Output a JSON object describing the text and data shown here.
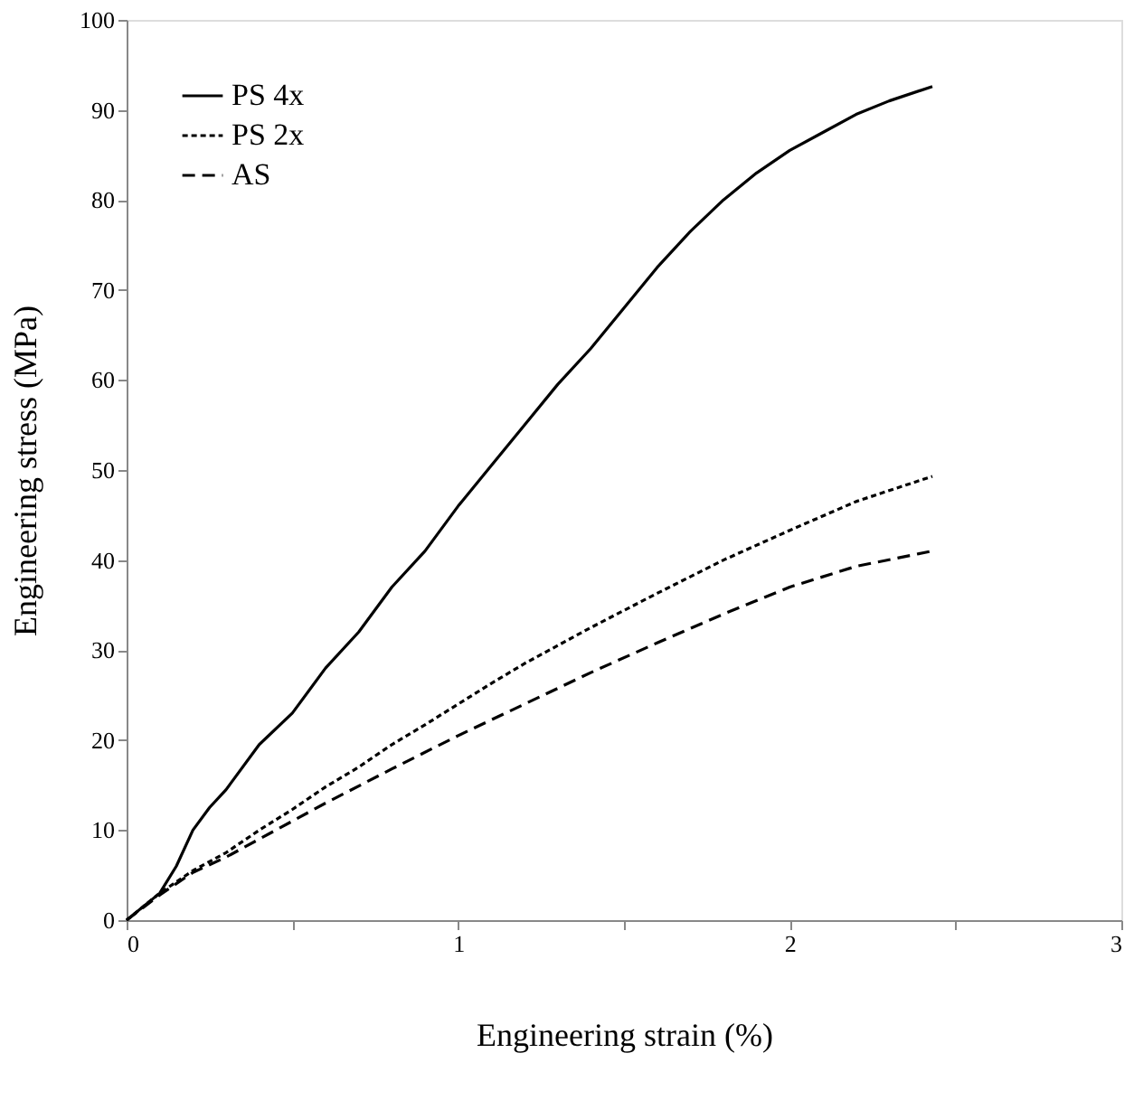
{
  "chart_data": {
    "type": "line",
    "xlabel": "Engineering strain (%)",
    "ylabel": "Engineering stress (MPa)",
    "xlim": [
      0,
      3
    ],
    "xticks": [
      0,
      {
        "value": 0.5,
        "label": null
      },
      1,
      {
        "value": 1.5,
        "label": null
      },
      2,
      {
        "value": 2.5,
        "label": null
      },
      3
    ],
    "ylim": [
      0,
      100
    ],
    "yticks": [
      0,
      10,
      20,
      30,
      40,
      50,
      60,
      70,
      80,
      90,
      100
    ],
    "grid": false,
    "legend": "top left",
    "marker": "none",
    "series": [
      {
        "name": "PS 4x",
        "color": "#000000",
        "line_style": "solid",
        "x": [
          0,
          0.1,
          0.15,
          0.2,
          0.25,
          0.3,
          0.4,
          0.5,
          0.6,
          0.7,
          0.8,
          0.9,
          1.0,
          1.1,
          1.2,
          1.3,
          1.4,
          1.5,
          1.6,
          1.7,
          1.8,
          1.9,
          2.0,
          2.1,
          2.2,
          2.3,
          2.43
        ],
        "values": [
          0,
          3,
          6,
          10,
          12.5,
          14.5,
          19.5,
          23,
          28,
          32,
          37,
          41,
          46,
          50.5,
          55,
          59.5,
          63.5,
          68,
          72.5,
          76.5,
          80,
          83,
          85.5,
          87.5,
          89.5,
          91,
          92.6
        ]
      },
      {
        "name": "PS 2x",
        "color": "#000000",
        "line_style": "dotted",
        "x": [
          0,
          0.1,
          0.2,
          0.3,
          0.4,
          0.5,
          0.6,
          0.7,
          0.8,
          0.9,
          1.0,
          1.1,
          1.2,
          1.4,
          1.6,
          1.8,
          2.0,
          2.2,
          2.43
        ],
        "values": [
          0,
          3,
          5.5,
          7.5,
          10,
          12.3,
          14.8,
          17,
          19.5,
          21.7,
          24,
          26.3,
          28.5,
          32.5,
          36.3,
          40,
          43.3,
          46.5,
          49.3
        ]
      },
      {
        "name": "AS",
        "color": "#000000",
        "line_style": "dashed",
        "x": [
          0,
          0.1,
          0.2,
          0.3,
          0.4,
          0.5,
          0.6,
          0.8,
          1.0,
          1.2,
          1.4,
          1.6,
          1.8,
          2.0,
          2.2,
          2.43
        ],
        "values": [
          0,
          2.8,
          5.3,
          7,
          9,
          11,
          13,
          16.8,
          20.5,
          24,
          27.5,
          30.8,
          34,
          37,
          39.3,
          41
        ]
      }
    ]
  }
}
